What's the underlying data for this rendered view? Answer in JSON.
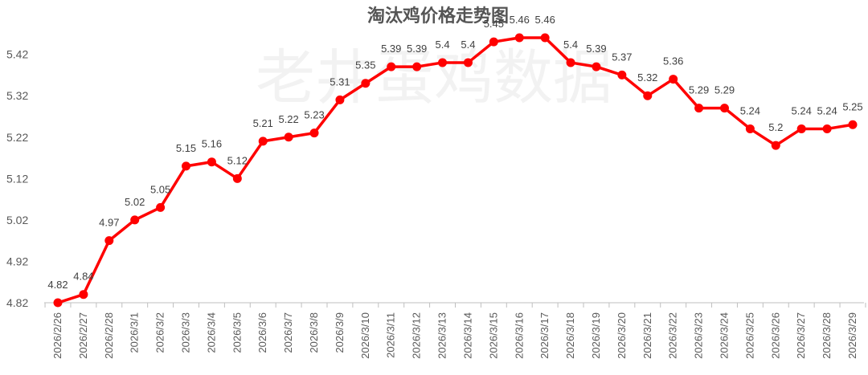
{
  "chart_data": {
    "type": "line",
    "title": "淘汰鸡价格走势图",
    "watermark": "老井蛋鸡数据",
    "xlabel": "",
    "ylabel": "",
    "categories": [
      "2026/2/26",
      "2026/2/27",
      "2026/2/28",
      "2026/3/1",
      "2026/3/2",
      "2026/3/3",
      "2026/3/4",
      "2026/3/5",
      "2026/3/6",
      "2026/3/7",
      "2026/3/8",
      "2026/3/9",
      "2026/3/10",
      "2026/3/11",
      "2026/3/12",
      "2026/3/13",
      "2026/3/14",
      "2026/3/15",
      "2026/3/16",
      "2026/3/17",
      "2026/3/18",
      "2026/3/19",
      "2026/3/20",
      "2026/3/21",
      "2026/3/22",
      "2026/3/23",
      "2026/3/24",
      "2026/3/25",
      "2026/3/26",
      "2026/3/27",
      "2026/3/28",
      "2026/3/29"
    ],
    "series": [
      {
        "values": [
          4.82,
          4.84,
          4.97,
          5.02,
          5.05,
          5.15,
          5.16,
          5.12,
          5.21,
          5.22,
          5.23,
          5.31,
          5.35,
          5.39,
          5.39,
          5.4,
          5.4,
          5.45,
          5.46,
          5.46,
          5.4,
          5.39,
          5.37,
          5.32,
          5.36,
          5.29,
          5.29,
          5.24,
          5.2,
          5.24,
          5.24,
          5.25
        ],
        "color": "#ff0000"
      }
    ],
    "yticks": [
      "4.82",
      "4.92",
      "5.02",
      "5.12",
      "5.22",
      "5.32",
      "5.42"
    ],
    "ylim": [
      4.82,
      5.46
    ],
    "grid": false,
    "legend": "none"
  }
}
